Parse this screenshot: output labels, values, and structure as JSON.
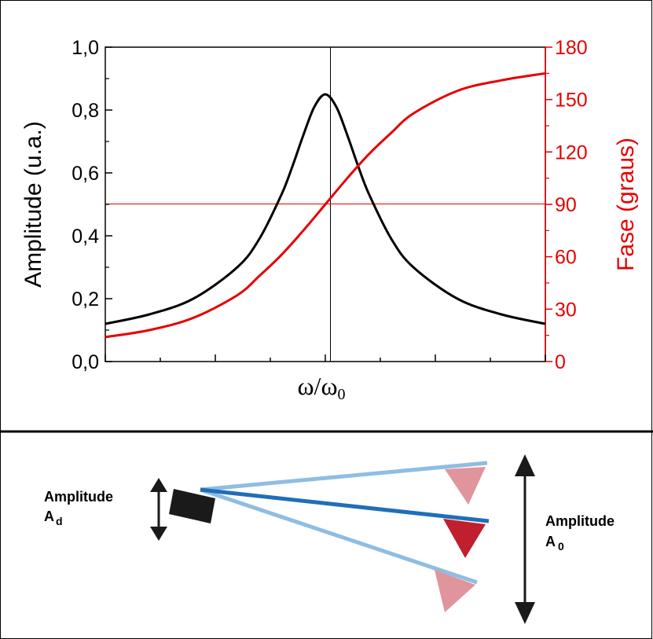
{
  "chart_data": {
    "type": "line",
    "xlabel": "ω/ω",
    "xlabel_sub": "0",
    "y_left": {
      "label": "Amplitude (u.a.)",
      "range": [
        0,
        1.0
      ],
      "ticks": [
        "0,0",
        "0,2",
        "0,4",
        "0,6",
        "0,8",
        "1,0"
      ],
      "color": "#000000"
    },
    "y_right": {
      "label": "Fase (graus)",
      "range": [
        0,
        180
      ],
      "ticks": [
        "0",
        "30",
        "60",
        "90",
        "120",
        "150",
        "180"
      ],
      "color": "#e60000"
    },
    "x_range": [
      -1,
      1
    ],
    "resonance": {
      "x": 0,
      "amplitude_peak": 0.85,
      "phase_at_resonance": 90
    },
    "series": [
      {
        "name": "",
        "axis": "left",
        "color": "#000000",
        "x": [
          -1.0,
          -0.8,
          -0.6,
          -0.4,
          -0.3,
          -0.2,
          -0.15,
          -0.1,
          -0.05,
          0.0,
          0.05,
          0.1,
          0.15,
          0.2,
          0.3,
          0.4,
          0.6,
          0.8,
          1.0
        ],
        "y": [
          0.12,
          0.15,
          0.2,
          0.3,
          0.39,
          0.53,
          0.62,
          0.72,
          0.81,
          0.85,
          0.81,
          0.72,
          0.62,
          0.53,
          0.39,
          0.3,
          0.2,
          0.15,
          0.12
        ]
      },
      {
        "name": "",
        "axis": "right",
        "color": "#e60000",
        "x": [
          -1.0,
          -0.8,
          -0.6,
          -0.4,
          -0.3,
          -0.2,
          -0.1,
          0.0,
          0.1,
          0.2,
          0.3,
          0.4,
          0.6,
          0.8,
          1.0
        ],
        "y": [
          14,
          18,
          25,
          38,
          49,
          61,
          75,
          90,
          105,
          119,
          131,
          142,
          155,
          161,
          165
        ]
      }
    ]
  },
  "diagram": {
    "left_label_line1": "Amplitude",
    "left_label_line2": "A",
    "left_label_sub": "d",
    "right_label_line1": "Amplitude",
    "right_label_line2": "A",
    "right_label_sub": "0",
    "colors": {
      "beam_light": "#8fbde3",
      "beam_dark": "#1f6fb8",
      "tip_light": "#e0949b",
      "tip_dark": "#c01f2e",
      "driver": "#1a1a1a"
    }
  }
}
